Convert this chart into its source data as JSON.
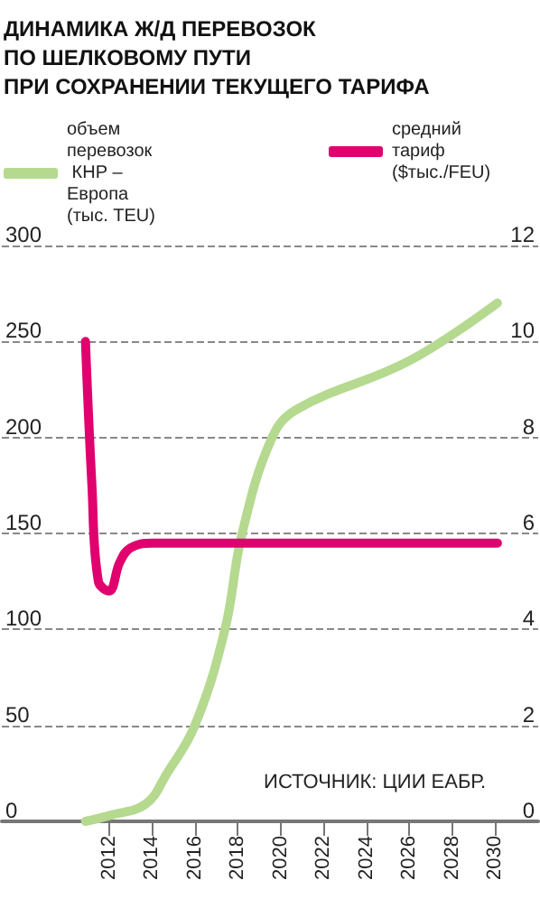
{
  "chart_data": {
    "type": "line",
    "title": "ДИНАМИКА Ж/Д ПЕРЕВОЗОК\nПО ШЕЛКОВОМУ ПУТИ\nПРИ СОХРАНЕНИИ ТЕКУЩЕГО ТАРИФА",
    "xlim": [
      2007,
      2032
    ],
    "xticks": [
      2012,
      2014,
      2016,
      2018,
      2020,
      2022,
      2024,
      2026,
      2028,
      2030
    ],
    "ylim": [
      0,
      300
    ],
    "yticks": [
      0,
      50,
      100,
      150,
      200,
      250,
      300
    ],
    "y2lim": [
      0,
      12
    ],
    "y2ticks": [
      0,
      2,
      4,
      6,
      8,
      10,
      12
    ],
    "grid": "y",
    "legend": "top",
    "marker": "none",
    "line_style": "solid",
    "series": [
      {
        "name": "объем перевозок КНР – Европа (тыс. TEU)",
        "color": "#b5d98f",
        "x": [
          2010.9,
          2012,
          2013.7,
          2014.7,
          2016,
          2017.4,
          2018.2,
          2019.6,
          2020.8,
          2026,
          2030.1
        ],
        "values": [
          0,
          3,
          9,
          25,
          50,
          100,
          150,
          200,
          215,
          240,
          270
        ]
      },
      {
        "name": "средний тариф ($тыс./FEU)",
        "color": "#e0006e",
        "axis": "y2",
        "x": [
          2010.9,
          2011.2,
          2011.5,
          2012,
          2012.5,
          2013,
          2014,
          2030.1
        ],
        "values": [
          10,
          7,
          5,
          4.8,
          5.4,
          5.7,
          5.8,
          5.8
        ]
      }
    ],
    "annotations": [
      "ИСТОЧНИК: ЦИИ ЕАБР."
    ]
  }
}
